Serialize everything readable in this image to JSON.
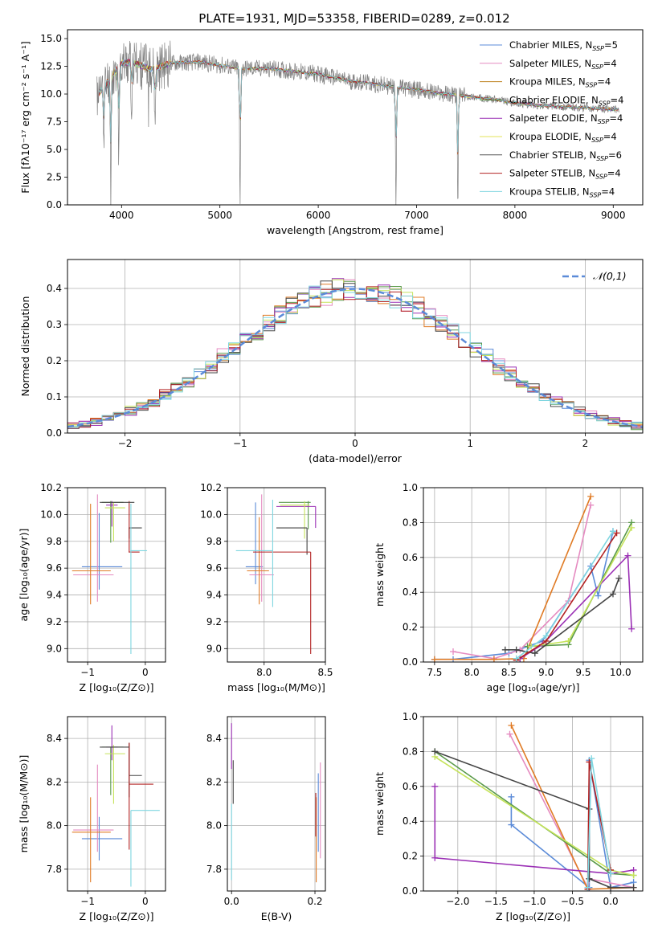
{
  "figure": {
    "title": "PLATE=1931, MJD=53358, FIBERID=0289, z=0.012"
  },
  "chart_data": [
    {
      "id": "spectrum",
      "type": "line",
      "xlabel": "wavelength [Angstrom, rest frame]",
      "ylabel": "Flux [fλ10⁻¹⁷ erg cm⁻² s⁻¹ A⁻¹]",
      "xlim": [
        3450,
        9300
      ],
      "ylim": [
        0,
        15.8
      ],
      "xticks": [
        4000,
        5000,
        6000,
        7000,
        8000,
        9000
      ],
      "yticks": [
        0.0,
        2.5,
        5.0,
        7.5,
        10.0,
        12.5,
        15.0
      ],
      "grid": false,
      "legend_position": "top-right",
      "legend": [
        {
          "label": "Chabrier MILES, N_SSP=5",
          "color": "#5b8bd8"
        },
        {
          "label": "Salpeter MILES, N_SSP=4",
          "color": "#e58ac0"
        },
        {
          "label": "Kroupa MILES, N_SSP=4",
          "color": "#c08524"
        },
        {
          "label": "Chabrier ELODIE, N_SSP=4",
          "color": "#5a9a4a"
        },
        {
          "label": "Salpeter ELODIE, N_SSP=4",
          "color": "#9b30b5"
        },
        {
          "label": "Kroupa ELODIE, N_SSP=4",
          "color": "#e3e35a"
        },
        {
          "label": "Chabrier STELIB, N_SSP=6",
          "color": "#555555"
        },
        {
          "label": "Salpeter STELIB, N_SSP=4",
          "color": "#b22222"
        },
        {
          "label": "Kroupa STELIB, N_SSP=4",
          "color": "#7fd6e0"
        }
      ],
      "data_color": "#808080",
      "continuum": {
        "x": [
          3750,
          3900,
          4000,
          4100,
          4300,
          4500,
          4800,
          5000,
          5200,
          5500,
          5800,
          6000,
          6300,
          6500,
          6800,
          7000,
          7200,
          7400,
          7600,
          7800,
          8000,
          8200,
          8400,
          8600,
          8800,
          9050
        ],
        "y": [
          9.8,
          11.6,
          12.8,
          12.9,
          12.2,
          12.8,
          12.9,
          12.6,
          12.3,
          12.3,
          12.0,
          11.8,
          11.2,
          11.0,
          10.6,
          10.4,
          10.1,
          9.9,
          9.7,
          9.5,
          9.2,
          9.0,
          8.9,
          8.8,
          8.7,
          8.6
        ]
      },
      "absorption_features": [
        {
          "x": 3820,
          "depth": 5.5
        },
        {
          "x": 3890,
          "depth": 10.5
        },
        {
          "x": 3970,
          "depth": 8.5
        },
        {
          "x": 4102,
          "depth": 4.0
        },
        {
          "x": 4340,
          "depth": 5.5
        },
        {
          "x": 5205,
          "depth": 12.5
        },
        {
          "x": 6790,
          "depth": 10.5
        },
        {
          "x": 7420,
          "depth": 10.2
        }
      ]
    },
    {
      "id": "residuals",
      "type": "histogram",
      "xlabel": "(data-model)/error",
      "ylabel": "Normed distribution",
      "xlim": [
        -2.5,
        2.5
      ],
      "ylim": [
        0,
        0.48
      ],
      "xticks": [
        -2,
        -1,
        0,
        1,
        2
      ],
      "yticks": [
        0.0,
        0.1,
        0.2,
        0.3,
        0.4
      ],
      "grid": true,
      "legend_position": "top-right",
      "reference_curve": {
        "label": "𝒩(0,1)",
        "color": "#5b8bd8",
        "mean": 0,
        "sigma": 1
      },
      "bin_width": 0.1,
      "series": [
        {
          "color": "#5b8bd8",
          "jitter_seed": 1
        },
        {
          "color": "#e58ac0",
          "jitter_seed": 2
        },
        {
          "color": "#e07b25",
          "jitter_seed": 3
        },
        {
          "color": "#5a9a4a",
          "jitter_seed": 4
        },
        {
          "color": "#9b30b5",
          "jitter_seed": 5
        },
        {
          "color": "#c5e35a",
          "jitter_seed": 6
        },
        {
          "color": "#444444",
          "jitter_seed": 7
        },
        {
          "color": "#b22222",
          "jitter_seed": 8
        },
        {
          "color": "#7fd6e0",
          "jitter_seed": 9
        }
      ]
    },
    {
      "id": "age_vs_Z",
      "type": "errorbar",
      "xlabel": "Z [log₁₀(Z/Z⊙)]",
      "ylabel": "age  [log₁₀(age/yr)]",
      "xlim": [
        -1.35,
        0.35
      ],
      "ylim": [
        8.9,
        10.2
      ],
      "xticks": [
        -1,
        0
      ],
      "yticks": [
        9.0,
        9.2,
        9.4,
        9.6,
        9.8,
        10.0,
        10.2
      ],
      "grid": true,
      "crosses": [
        {
          "color": "#5b8bd8",
          "x": -0.8,
          "xerr": [
            0.3,
            0.4
          ],
          "y": 9.61,
          "yerr": [
            0.17,
            0.4
          ]
        },
        {
          "color": "#e58ac0",
          "x": -0.83,
          "xerr": [
            0.42,
            0.28
          ],
          "y": 9.55,
          "yerr": [
            0.2,
            0.6
          ]
        },
        {
          "color": "#e07b25",
          "x": -0.95,
          "xerr": [
            0.32,
            0.35
          ],
          "y": 9.58,
          "yerr": [
            0.25,
            0.5
          ]
        },
        {
          "color": "#5a9a4a",
          "x": -0.6,
          "xerr": [
            0.15,
            0.22
          ],
          "y": 10.09,
          "yerr": [
            0.3,
            0.01
          ]
        },
        {
          "color": "#9b30b5",
          "x": -0.58,
          "xerr": [
            0.1,
            0.1
          ],
          "y": 10.07,
          "yerr": [
            0.16,
            0.03
          ]
        },
        {
          "color": "#c5e35a",
          "x": -0.55,
          "xerr": [
            0.15,
            0.2
          ],
          "y": 10.05,
          "yerr": [
            0.25,
            0.04
          ]
        },
        {
          "color": "#444444",
          "x": -0.28,
          "xerr": [
            0.01,
            0.22
          ],
          "y": 9.9,
          "yerr": [
            0.08,
            0.0
          ]
        },
        {
          "color": "#b22222",
          "x": -0.28,
          "xerr": [
            0.01,
            0.18
          ],
          "y": 9.72,
          "yerr": [
            0.0,
            0.38
          ]
        },
        {
          "color": "#7fd6e0",
          "x": -0.25,
          "xerr": [
            0.01,
            0.28
          ],
          "y": 9.73,
          "yerr": [
            0.77,
            0.35
          ]
        },
        {
          "color": "#444444",
          "x": -0.79,
          "xerr": [
            0.0,
            0.6
          ],
          "y": 10.09,
          "yerr": [
            0.0,
            0.0
          ]
        }
      ]
    },
    {
      "id": "age_vs_mass",
      "type": "errorbar",
      "xlabel": "mass [log₁₀(M/M⊙)]",
      "ylabel": "",
      "xlim": [
        7.7,
        8.5
      ],
      "ylim": [
        8.9,
        10.2
      ],
      "xticks": [
        8.0,
        8.5
      ],
      "yticks": [
        9.0,
        9.2,
        9.4,
        9.6,
        9.8,
        10.0,
        10.2
      ],
      "grid": true,
      "crosses": [
        {
          "color": "#5b8bd8",
          "x": 7.93,
          "xerr": [
            0.08,
            0.06
          ],
          "y": 9.61,
          "yerr": [
            0.13,
            0.48
          ]
        },
        {
          "color": "#e58ac0",
          "x": 7.98,
          "xerr": [
            0.1,
            0.1
          ],
          "y": 9.55,
          "yerr": [
            0.2,
            0.6
          ]
        },
        {
          "color": "#e07b25",
          "x": 7.96,
          "xerr": [
            0.1,
            0.08
          ],
          "y": 9.58,
          "yerr": [
            0.25,
            0.4
          ]
        },
        {
          "color": "#5a9a4a",
          "x": 8.36,
          "xerr": [
            0.24,
            0.02
          ],
          "y": 10.09,
          "yerr": [
            0.2,
            0.01
          ]
        },
        {
          "color": "#9b30b5",
          "x": 8.42,
          "xerr": [
            0.32,
            0.0
          ],
          "y": 10.06,
          "yerr": [
            0.16,
            0.0
          ]
        },
        {
          "color": "#c5e35a",
          "x": 8.33,
          "xerr": [
            0.2,
            0.04
          ],
          "y": 10.07,
          "yerr": [
            0.25,
            0.03
          ]
        },
        {
          "color": "#444444",
          "x": 8.35,
          "xerr": [
            0.25,
            0.0
          ],
          "y": 9.9,
          "yerr": [
            0.2,
            0.0
          ]
        },
        {
          "color": "#b22222",
          "x": 8.38,
          "xerr": [
            0.47,
            0.0
          ],
          "y": 9.72,
          "yerr": [
            0.76,
            0.0
          ]
        },
        {
          "color": "#7fd6e0",
          "x": 8.07,
          "xerr": [
            0.3,
            0.0
          ],
          "y": 9.73,
          "yerr": [
            0.42,
            0.38
          ]
        },
        {
          "color": "#444444",
          "x": 8.36,
          "xerr": [
            0.0,
            0.0
          ],
          "y": 10.09,
          "yerr": [
            0.0,
            0.0
          ]
        }
      ]
    },
    {
      "id": "mass_weight_vs_age",
      "type": "line",
      "xlabel": "age  [log₁₀(age/yr)]",
      "ylabel": "mass weight",
      "xlim": [
        7.35,
        10.3
      ],
      "ylim": [
        0.0,
        1.0
      ],
      "xticks": [
        7.5,
        8.0,
        8.5,
        9.0,
        9.5,
        10.0
      ],
      "yticks": [
        0.0,
        0.2,
        0.4,
        0.6,
        0.8,
        1.0
      ],
      "grid": true,
      "series": [
        {
          "color": "#5b8bd8",
          "x": [
            7.5,
            7.75,
            8.5,
            8.95,
            9.6,
            9.7,
            9.9
          ],
          "y": [
            0.015,
            0.015,
            0.05,
            0.12,
            0.55,
            0.38,
            0.75
          ]
        },
        {
          "color": "#e58ac0",
          "x": [
            7.75,
            8.3,
            8.65,
            9.3,
            9.6
          ],
          "y": [
            0.06,
            0.02,
            0.07,
            0.35,
            0.9
          ]
        },
        {
          "color": "#e07b25",
          "x": [
            7.5,
            8.3,
            8.7,
            9.6
          ],
          "y": [
            0.015,
            0.015,
            0.02,
            0.95
          ]
        },
        {
          "color": "#5a9a4a",
          "x": [
            8.75,
            9.3,
            10.15
          ],
          "y": [
            0.09,
            0.1,
            0.8
          ]
        },
        {
          "color": "#9b30b5",
          "x": [
            8.65,
            8.95,
            10.1,
            10.15
          ],
          "y": [
            0.02,
            0.1,
            0.61,
            0.19
          ]
        },
        {
          "color": "#c5e35a",
          "x": [
            8.8,
            9.3,
            10.15
          ],
          "y": [
            0.09,
            0.12,
            0.77
          ]
        },
        {
          "color": "#444444",
          "x": [
            8.45,
            8.6,
            8.85,
            9.9,
            9.98
          ],
          "y": [
            0.07,
            0.07,
            0.05,
            0.39,
            0.48
          ]
        },
        {
          "color": "#b22222",
          "x": [
            8.6,
            9.0,
            9.95
          ],
          "y": [
            0.01,
            0.12,
            0.74
          ]
        },
        {
          "color": "#7fd6e0",
          "x": [
            8.6,
            9.0,
            9.9
          ],
          "y": [
            0.02,
            0.15,
            0.75
          ]
        }
      ]
    },
    {
      "id": "mass_vs_Z",
      "type": "errorbar",
      "xlabel": "Z [log₁₀(Z/Z⊙)]",
      "ylabel": "mass [log₁₀(M/M⊙)]",
      "xlim": [
        -1.35,
        0.35
      ],
      "ylim": [
        7.7,
        8.5
      ],
      "xticks": [
        -1,
        0
      ],
      "yticks": [
        7.8,
        8.0,
        8.2,
        8.4
      ],
      "grid": true,
      "crosses": [
        {
          "color": "#5b8bd8",
          "x": -0.8,
          "xerr": [
            0.3,
            0.4
          ],
          "y": 7.94,
          "yerr": [
            0.1,
            0.1
          ]
        },
        {
          "color": "#e58ac0",
          "x": -0.83,
          "xerr": [
            0.42,
            0.28
          ],
          "y": 7.98,
          "yerr": [
            0.1,
            0.3
          ]
        },
        {
          "color": "#e07b25",
          "x": -0.95,
          "xerr": [
            0.32,
            0.35
          ],
          "y": 7.97,
          "yerr": [
            0.23,
            0.16
          ]
        },
        {
          "color": "#5a9a4a",
          "x": -0.6,
          "xerr": [
            0.15,
            0.22
          ],
          "y": 8.36,
          "yerr": [
            0.22,
            0.0
          ]
        },
        {
          "color": "#9b30b5",
          "x": -0.58,
          "xerr": [
            0.1,
            0.1
          ],
          "y": 8.36,
          "yerr": [
            0.06,
            0.1
          ]
        },
        {
          "color": "#c5e35a",
          "x": -0.55,
          "xerr": [
            0.15,
            0.2
          ],
          "y": 8.33,
          "yerr": [
            0.23,
            0.04
          ]
        },
        {
          "color": "#444444",
          "x": -0.28,
          "xerr": [
            0.0,
            0.22
          ],
          "y": 8.23,
          "yerr": [
            0.1,
            0.15
          ]
        },
        {
          "color": "#b22222",
          "x": -0.28,
          "xerr": [
            0.0,
            0.42
          ],
          "y": 8.19,
          "yerr": [
            0.3,
            0.19
          ]
        },
        {
          "color": "#7fd6e0",
          "x": -0.25,
          "xerr": [
            0.0,
            0.5
          ],
          "y": 8.07,
          "yerr": [
            0.35,
            0.0
          ]
        },
        {
          "color": "#444444",
          "x": -0.79,
          "xerr": [
            0.0,
            0.51
          ],
          "y": 8.36,
          "yerr": [
            0.0,
            0.0
          ]
        }
      ]
    },
    {
      "id": "mass_vs_ebv",
      "type": "errorbar",
      "xlabel": "E(B-V)",
      "ylabel": "",
      "xlim": [
        -0.01,
        0.225
      ],
      "ylim": [
        7.7,
        8.5
      ],
      "xticks": [
        0.0,
        0.2
      ],
      "yticks": [
        7.8,
        8.0,
        8.2,
        8.4
      ],
      "grid": true,
      "crosses": [
        {
          "color": "#444444",
          "x": 0.004,
          "xerr": [
            0.0,
            0.0
          ],
          "y": 8.2,
          "yerr": [
            0.1,
            0.1
          ]
        },
        {
          "color": "#9b30b5",
          "x": 0.0,
          "xerr": [
            0.0,
            0.0
          ],
          "y": 8.36,
          "yerr": [
            0.1,
            0.11
          ]
        },
        {
          "color": "#7fd6e0",
          "x": 0.0,
          "xerr": [
            0.0,
            0.0
          ],
          "y": 7.9,
          "yerr": [
            0.15,
            0.2
          ]
        },
        {
          "color": "#e07b25",
          "x": 0.203,
          "xerr": [
            0.0,
            0.0
          ],
          "y": 7.97,
          "yerr": [
            0.23,
            0.16
          ]
        },
        {
          "color": "#e58ac0",
          "x": 0.213,
          "xerr": [
            0.0,
            0.0
          ],
          "y": 8.05,
          "yerr": [
            0.2,
            0.24
          ]
        },
        {
          "color": "#5b8bd8",
          "x": 0.208,
          "xerr": [
            0.0,
            0.0
          ],
          "y": 8.04,
          "yerr": [
            0.16,
            0.2
          ]
        },
        {
          "color": "#b22222",
          "x": 0.202,
          "xerr": [
            0.0,
            0.0
          ],
          "y": 8.05,
          "yerr": [
            0.1,
            0.1
          ]
        }
      ]
    },
    {
      "id": "mass_weight_vs_Z",
      "type": "line",
      "xlabel": "Z [log₁₀(Z/Z⊙)]",
      "ylabel": "mass weight",
      "xlim": [
        -2.45,
        0.42
      ],
      "ylim": [
        0.0,
        1.0
      ],
      "xticks": [
        -2.0,
        -1.5,
        -1.0,
        -0.5,
        0.0
      ],
      "yticks": [
        0.0,
        0.2,
        0.4,
        0.6,
        0.8,
        1.0
      ],
      "grid": true,
      "series": [
        {
          "color": "#5b8bd8",
          "x": [
            -1.3,
            -1.3,
            -0.28,
            -0.28,
            0.0,
            0.3
          ],
          "y": [
            0.54,
            0.38,
            0.02,
            0.75,
            0.02,
            0.05
          ]
        },
        {
          "color": "#e58ac0",
          "x": [
            -1.32,
            -0.3,
            -0.28,
            0.3
          ],
          "y": [
            0.9,
            0.02,
            0.07,
            0.02
          ]
        },
        {
          "color": "#e07b25",
          "x": [
            -1.3,
            -0.3,
            0.3
          ],
          "y": [
            0.95,
            0.01,
            0.02
          ]
        },
        {
          "color": "#5a9a4a",
          "x": [
            -2.3,
            0.0,
            0.3
          ],
          "y": [
            0.8,
            0.1,
            0.09
          ]
        },
        {
          "color": "#9b30b5",
          "x": [
            -2.3,
            -2.3,
            0.0,
            0.3
          ],
          "y": [
            0.6,
            0.19,
            0.1,
            0.12
          ]
        },
        {
          "color": "#c5e35a",
          "x": [
            -2.3,
            0.0,
            0.3
          ],
          "y": [
            0.77,
            0.12,
            0.09
          ]
        },
        {
          "color": "#444444",
          "x": [
            -2.3,
            -0.28,
            -0.28,
            0.0,
            0.3
          ],
          "y": [
            0.8,
            0.47,
            0.07,
            0.02,
            0.02
          ]
        },
        {
          "color": "#b22222",
          "x": [
            -0.3,
            -0.28,
            0.0
          ],
          "y": [
            0.01,
            0.74,
            0.12
          ]
        },
        {
          "color": "#7fd6e0",
          "x": [
            -0.3,
            -0.25,
            0.0
          ],
          "y": [
            0.02,
            0.76,
            0.1
          ]
        }
      ]
    }
  ]
}
